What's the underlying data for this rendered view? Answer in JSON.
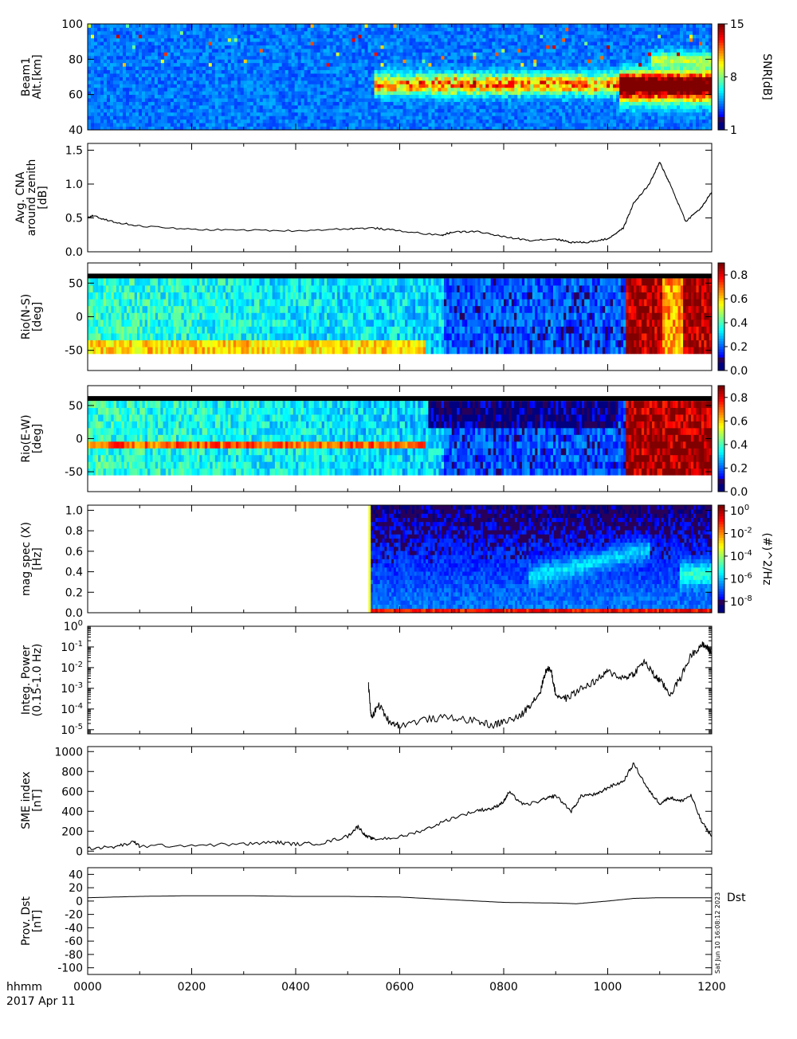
{
  "footer": {
    "time_label": "hhmm",
    "date_label": "2017 Apr 11",
    "x_ticks": [
      "0000",
      "0200",
      "0400",
      "0600",
      "0800",
      "1000",
      "1200"
    ],
    "stamp": "Sat Jun 10 16:08:12 2023"
  },
  "chart_data": [
    {
      "type": "heatmap",
      "ylabel": [
        "Beam1",
        "Alt.[km]"
      ],
      "yticks": [
        "40",
        "60",
        "80",
        "100"
      ],
      "ylim": [
        40,
        100
      ],
      "colorbar": {
        "label": "SNR[dB]",
        "ticks": [
          "1",
          "8",
          "15"
        ],
        "range": [
          1,
          15
        ]
      }
    },
    {
      "type": "line",
      "ylabel": [
        "Avg. CNA",
        "around zenith",
        "[dB]"
      ],
      "yticks": [
        "0.0",
        "0.5",
        "1.0",
        "1.5"
      ],
      "ylim": [
        0,
        1.6
      ],
      "x": [
        0,
        0.1,
        0.5,
        1,
        2,
        3,
        4,
        5,
        5.5,
        6,
        6.8,
        7,
        7.5,
        8,
        8.5,
        9,
        9.3,
        9.6,
        10,
        10.3,
        10.5,
        10.8,
        11,
        11.2,
        11.5,
        11.8,
        12
      ],
      "y": [
        0.5,
        0.53,
        0.44,
        0.38,
        0.33,
        0.32,
        0.31,
        0.34,
        0.35,
        0.31,
        0.24,
        0.29,
        0.3,
        0.22,
        0.17,
        0.19,
        0.14,
        0.14,
        0.19,
        0.35,
        0.72,
        1.0,
        1.32,
        1.0,
        0.45,
        0.65,
        0.88
      ]
    },
    {
      "type": "heatmap",
      "ylabel": [
        "Rio(N-S)",
        "[deg]"
      ],
      "yticks": [
        "-50",
        "0",
        "50"
      ],
      "ylim": [
        -80,
        80
      ],
      "colorbar": {
        "ticks": [
          "0.0",
          "0.2",
          "0.4",
          "0.6",
          "0.8"
        ],
        "range": [
          0,
          0.9
        ]
      }
    },
    {
      "type": "heatmap",
      "ylabel": [
        "Rio(E-W)",
        "[deg]"
      ],
      "yticks": [
        "-50",
        "0",
        "50"
      ],
      "ylim": [
        -80,
        80
      ],
      "colorbar": {
        "ticks": [
          "0.0",
          "0.2",
          "0.4",
          "0.6",
          "0.8"
        ],
        "range": [
          0,
          0.9
        ]
      }
    },
    {
      "type": "heatmap",
      "ylabel": [
        "mag spec (X)",
        "[Hz]"
      ],
      "yticks": [
        "0.0",
        "0.2",
        "0.4",
        "0.6",
        "0.8",
        "1.0"
      ],
      "ylim": [
        0,
        1.05
      ],
      "data_start_hour": 5.4,
      "colorbar": {
        "label": "(#)^2/Hz",
        "ticks": [
          "10^0",
          "10^-2",
          "10^-4",
          "10^-6",
          "10^-8"
        ],
        "log_range": [
          -9,
          0.5
        ]
      }
    },
    {
      "type": "line",
      "ylabel": [
        "Integ. Power",
        "(0.15-1.0 Hz)"
      ],
      "yscale": "log",
      "yticks": [
        "10^-5",
        "10^-4",
        "10^-3",
        "10^-2",
        "10^-1",
        "10^0"
      ],
      "ylim_log": [
        -5.2,
        0
      ],
      "x": [
        5.4,
        5.45,
        5.6,
        5.8,
        6.0,
        6.5,
        7.0,
        7.5,
        7.8,
        8.0,
        8.3,
        8.5,
        8.7,
        8.8,
        8.9,
        9.0,
        9.2,
        9.5,
        9.8,
        10.0,
        10.3,
        10.5,
        10.7,
        10.9,
        11.0,
        11.2,
        11.4,
        11.6,
        11.8,
        11.9,
        12.0
      ],
      "y_log": [
        -2.85,
        -4.4,
        -3.8,
        -4.6,
        -4.8,
        -4.5,
        -4.4,
        -4.6,
        -4.8,
        -4.6,
        -4.4,
        -3.8,
        -3.2,
        -2.2,
        -2.0,
        -3.3,
        -3.5,
        -3.0,
        -2.6,
        -2.2,
        -2.5,
        -2.3,
        -1.7,
        -2.4,
        -2.6,
        -3.3,
        -2.5,
        -1.4,
        -0.9,
        -1.0,
        -1.3
      ]
    },
    {
      "type": "line",
      "ylabel": [
        "SME index",
        "[nT]"
      ],
      "yticks": [
        "0",
        "200",
        "400",
        "600",
        "800",
        "1000"
      ],
      "ylim": [
        -30,
        1050
      ],
      "x": [
        0,
        0.5,
        0.9,
        1.0,
        2.0,
        3.0,
        3.6,
        4.0,
        4.5,
        5.0,
        5.2,
        5.35,
        5.5,
        6.0,
        6.5,
        7.0,
        7.5,
        7.8,
        8.0,
        8.1,
        8.4,
        8.8,
        9.0,
        9.3,
        9.5,
        9.8,
        10.0,
        10.3,
        10.5,
        10.8,
        11.0,
        11.2,
        11.4,
        11.6,
        11.8,
        12.0
      ],
      "y": [
        30,
        40,
        90,
        50,
        60,
        70,
        90,
        70,
        80,
        150,
        250,
        150,
        120,
        140,
        220,
        330,
        410,
        430,
        500,
        590,
        460,
        520,
        560,
        400,
        560,
        570,
        640,
        700,
        880,
        600,
        480,
        540,
        500,
        560,
        300,
        150
      ]
    },
    {
      "type": "line",
      "ylabel": [
        "Prov. Dst",
        "[nT]"
      ],
      "legend_label": "Dst",
      "yticks": [
        "-100",
        "-80",
        "-60",
        "-40",
        "-20",
        "0",
        "20",
        "40"
      ],
      "ylim": [
        -110,
        50
      ],
      "x": [
        0,
        1,
        2,
        3,
        4,
        5,
        6,
        7,
        8,
        9,
        9.4,
        10,
        10.5,
        11,
        12
      ],
      "y": [
        5,
        7,
        8,
        8,
        7,
        7,
        6,
        2,
        -2,
        -3,
        -4,
        0,
        4,
        5,
        5
      ]
    }
  ]
}
